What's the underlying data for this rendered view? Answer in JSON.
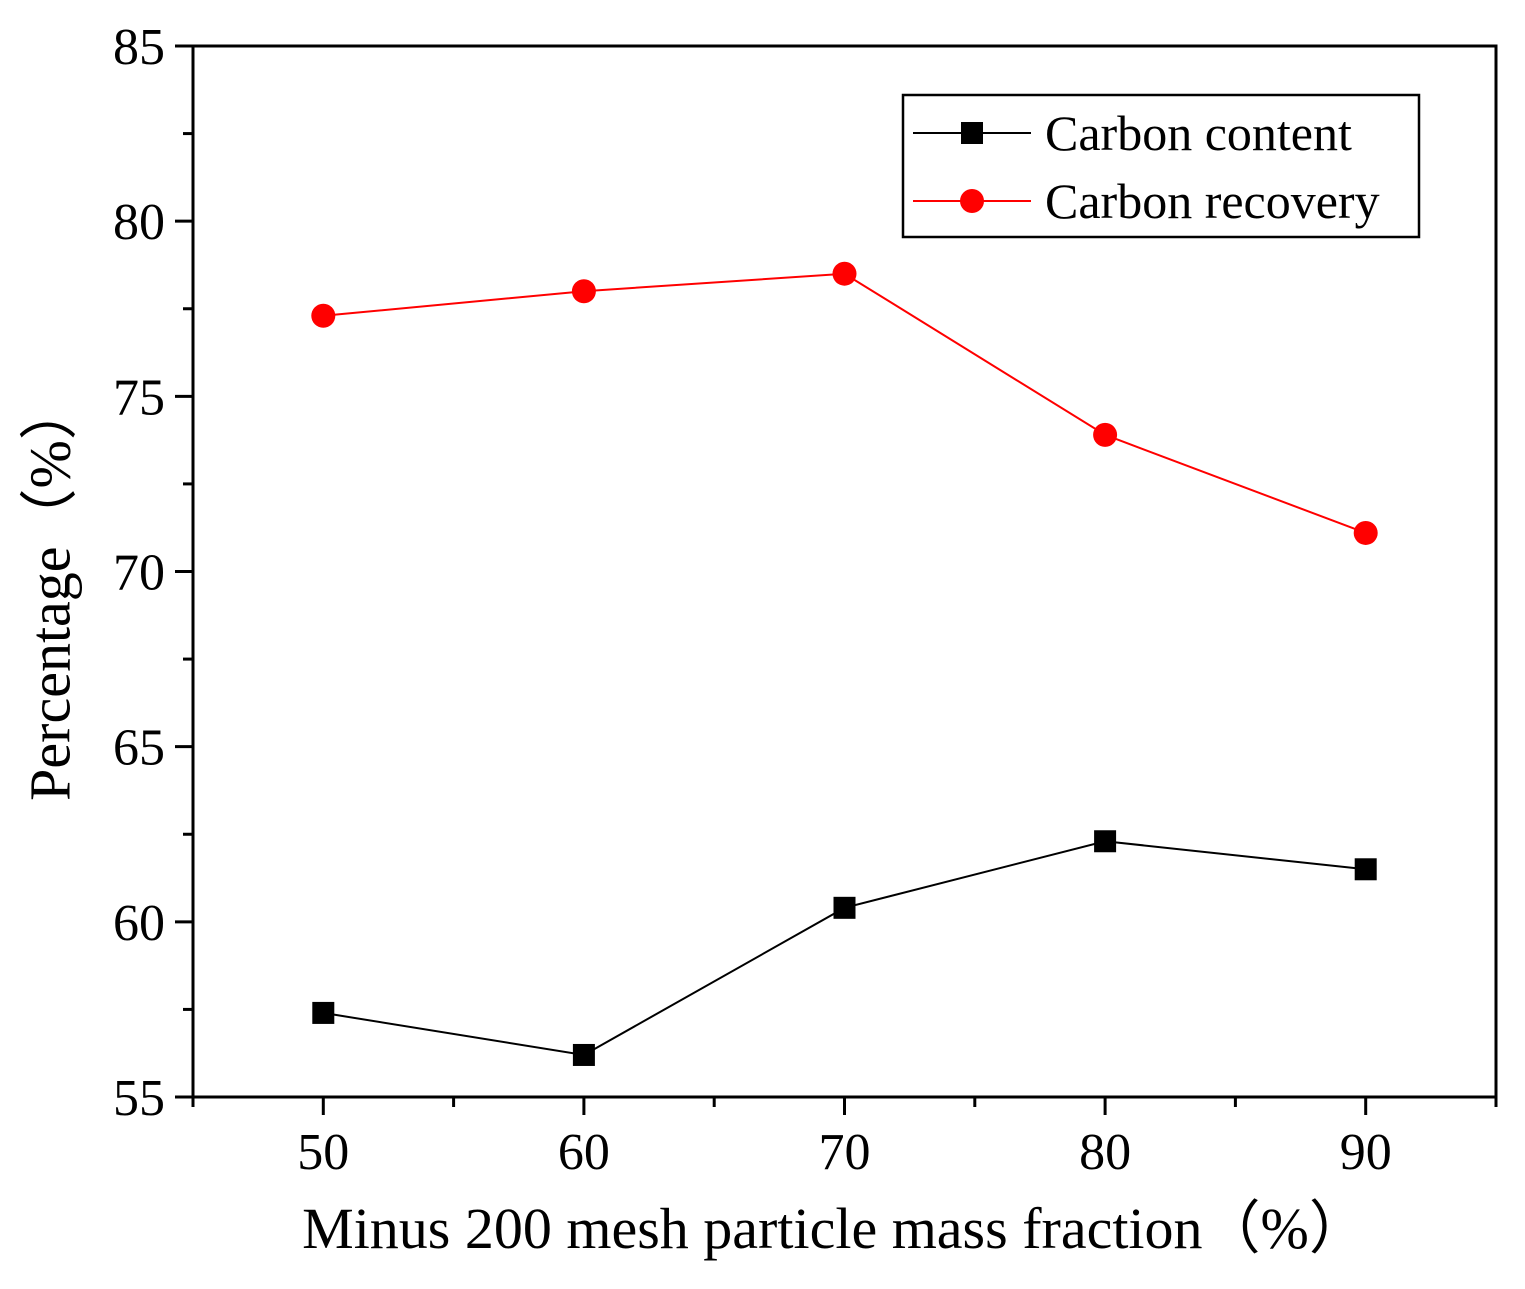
{
  "chart_data": {
    "type": "line",
    "xlabel": "Minus 200 mesh particle mass fraction（%）",
    "ylabel": "Percentage（%）",
    "x": [
      50,
      60,
      70,
      80,
      90
    ],
    "xlim": [
      45,
      95
    ],
    "ylim": [
      55,
      85
    ],
    "x_ticks": [
      50,
      60,
      70,
      80,
      90
    ],
    "y_ticks": [
      55,
      60,
      65,
      70,
      75,
      80,
      85
    ],
    "x_tick_labels": [
      "50",
      "60",
      "70",
      "80",
      "90"
    ],
    "y_tick_labels": [
      "55",
      "60",
      "65",
      "70",
      "75",
      "80",
      "85"
    ],
    "grid": false,
    "legend_position": "top-right",
    "series": [
      {
        "name": "Carbon content",
        "values": [
          57.4,
          56.2,
          60.4,
          62.3,
          61.5
        ],
        "color": "#000000",
        "marker": "square"
      },
      {
        "name": "Carbon recovery",
        "values": [
          77.3,
          78.0,
          78.5,
          73.9,
          71.1
        ],
        "color": "#ff0000",
        "marker": "circle"
      }
    ]
  }
}
